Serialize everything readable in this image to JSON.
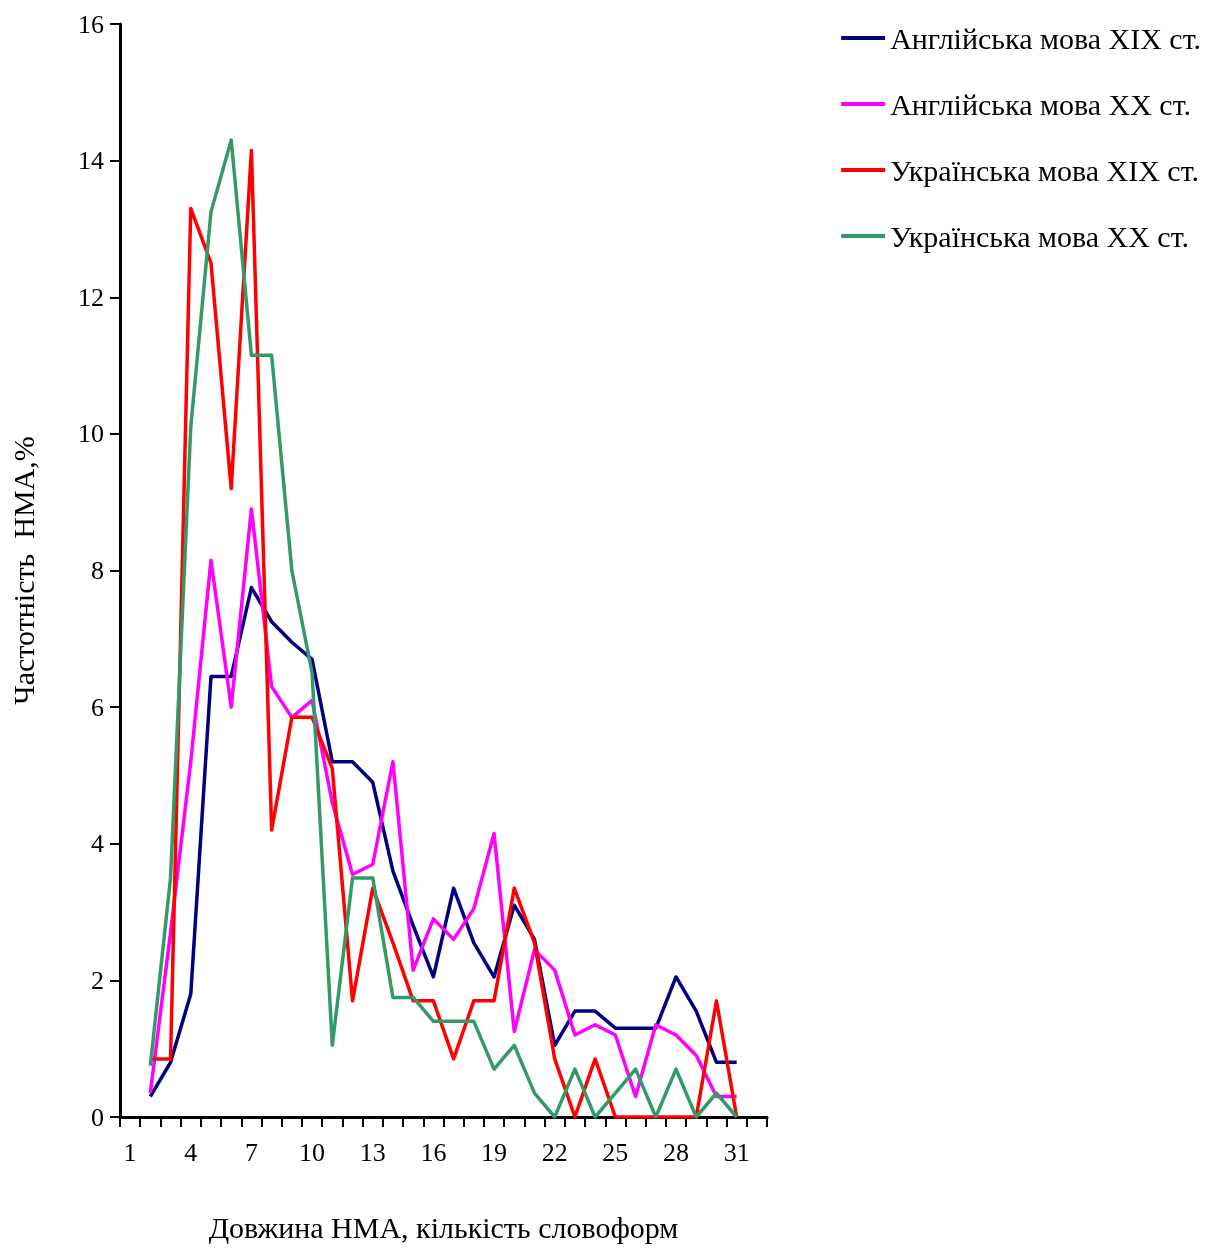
{
  "chart_data": {
    "type": "line",
    "xlabel": "Довжина НМА, кількість словоформ",
    "ylabel": "Частотність  НМА,%",
    "categories": [
      "1",
      null,
      null,
      "4",
      null,
      null,
      "7",
      null,
      null,
      "10",
      null,
      null,
      "13",
      null,
      null,
      "16",
      null,
      null,
      "19",
      null,
      null,
      "22",
      null,
      null,
      "25",
      null,
      null,
      "28",
      null,
      null,
      "31",
      null
    ],
    "series": [
      {
        "name": "Англійська мова XIX ст.",
        "color": "#000080",
        "values": [
          null,
          0.3,
          0.8,
          1.8,
          6.45,
          6.45,
          7.75,
          7.25,
          6.95,
          6.7,
          5.2,
          5.2,
          4.9,
          3.6,
          2.8,
          2.05,
          3.35,
          2.55,
          2.05,
          3.1,
          2.6,
          1.05,
          1.55,
          1.55,
          1.3,
          1.3,
          1.3,
          2.05,
          1.55,
          0.8,
          0.8,
          null
        ]
      },
      {
        "name": "Англійська мова XX ст.",
        "color": "#ff00ff",
        "values": [
          null,
          0.35,
          2.7,
          5.2,
          8.15,
          6.0,
          8.9,
          6.3,
          5.85,
          6.1,
          4.6,
          3.55,
          3.7,
          5.2,
          2.15,
          2.9,
          2.6,
          3.05,
          4.15,
          1.25,
          2.45,
          2.15,
          1.2,
          1.35,
          1.2,
          0.3,
          1.35,
          1.2,
          0.9,
          0.3,
          0.3,
          null
        ]
      },
      {
        "name": "Українська мова XIX ст.",
        "color": "#ff0000",
        "values": [
          null,
          0.85,
          0.85,
          13.3,
          12.5,
          9.2,
          14.15,
          4.2,
          5.85,
          5.85,
          5.1,
          1.7,
          3.35,
          2.55,
          1.7,
          1.7,
          0.85,
          1.7,
          1.7,
          3.35,
          2.55,
          0.85,
          0,
          0.85,
          0,
          0,
          0,
          0,
          0,
          1.7,
          0,
          null
        ]
      },
      {
        "name": "Українська мова XX ст.",
        "color": "#339966",
        "values": [
          null,
          0.75,
          3.5,
          10.1,
          13.25,
          14.3,
          11.15,
          11.15,
          8.0,
          6.5,
          1.05,
          3.5,
          3.5,
          1.75,
          1.75,
          1.4,
          1.4,
          1.4,
          0.7,
          1.05,
          0.35,
          0,
          0.7,
          0,
          0.35,
          0.7,
          0,
          0.7,
          0,
          0.35,
          0,
          null
        ]
      }
    ],
    "ylim": [
      0,
      16
    ],
    "yticks": [
      0,
      2,
      4,
      6,
      8,
      10,
      12,
      14,
      16
    ],
    "grid": false,
    "legend": "top right",
    "marker": "none",
    "line_style": "solid"
  }
}
